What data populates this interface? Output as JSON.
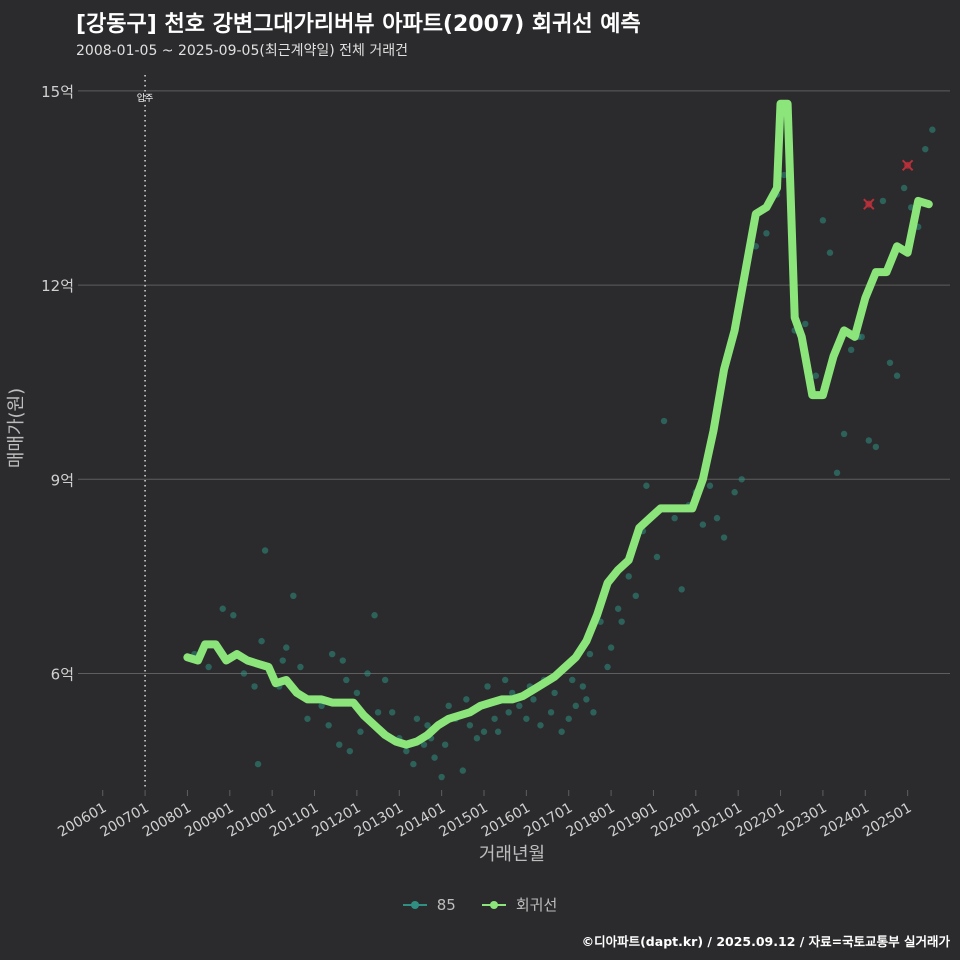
{
  "title": "[강동구] 천호 강변그대가리버뷰 아파트(2007) 회귀선 예측",
  "subtitle": "2008-01-05 ~ 2025-09-05(최근계약일) 전체 거래건",
  "caption": "©디아파트(dapt.kr) / 2025.09.12 / 자료=국토교통부 실거래가",
  "colors": {
    "background": "#2b2b2d",
    "grid": "#5e5e5e",
    "scatter": "#2f8f82",
    "regression": "#8be57a",
    "outlier": "#b8303a",
    "text": "#d0d0d0"
  },
  "chart_data": {
    "type": "line",
    "xlabel": "거래년월",
    "ylabel": "매매가(원)",
    "x_ticks": [
      "200601",
      "200701",
      "200801",
      "200901",
      "201001",
      "201101",
      "201201",
      "201301",
      "201401",
      "201501",
      "201601",
      "201701",
      "201801",
      "201901",
      "202001",
      "202101",
      "202201",
      "202301",
      "202401",
      "202501"
    ],
    "y_ticks": [
      {
        "value": 6,
        "label": "6억"
      },
      {
        "value": 9,
        "label": "9억"
      },
      {
        "value": 12,
        "label": "12억"
      },
      {
        "value": 15,
        "label": "15억"
      }
    ],
    "xlim": [
      "2005-06",
      "2026-01"
    ],
    "ylim": [
      4.2,
      15.4
    ],
    "annotation": {
      "x": "2007-01",
      "label": "입주"
    },
    "legend": [
      {
        "name": "85",
        "style": "point"
      },
      {
        "name": "회귀선",
        "style": "line"
      }
    ],
    "regression": {
      "name": "회귀선",
      "x": [
        "2008-01",
        "2008-04",
        "2008-06",
        "2008-09",
        "2008-12",
        "2009-03",
        "2009-06",
        "2009-09",
        "2009-12",
        "2010-02",
        "2010-05",
        "2010-08",
        "2010-11",
        "2011-03",
        "2011-06",
        "2011-09",
        "2011-12",
        "2012-03",
        "2012-06",
        "2012-09",
        "2012-12",
        "2013-03",
        "2013-06",
        "2013-09",
        "2013-12",
        "2014-03",
        "2014-06",
        "2014-09",
        "2014-12",
        "2015-03",
        "2015-06",
        "2015-09",
        "2015-12",
        "2016-03",
        "2016-06",
        "2016-09",
        "2016-12",
        "2017-03",
        "2017-06",
        "2017-09",
        "2017-12",
        "2018-03",
        "2018-06",
        "2018-09",
        "2018-12",
        "2019-03",
        "2019-06",
        "2019-09",
        "2019-12",
        "2020-03",
        "2020-06",
        "2020-09",
        "2020-12",
        "2021-03",
        "2021-06",
        "2021-09",
        "2021-12",
        "2022-01",
        "2022-03",
        "2022-05",
        "2022-07",
        "2022-10",
        "2023-01",
        "2023-04",
        "2023-07",
        "2023-10",
        "2024-01",
        "2024-04",
        "2024-07",
        "2024-10",
        "2025-01",
        "2025-04",
        "2025-07"
      ],
      "y": [
        6.25,
        6.2,
        6.45,
        6.45,
        6.2,
        6.3,
        6.2,
        6.15,
        6.1,
        5.85,
        5.9,
        5.7,
        5.6,
        5.6,
        5.55,
        5.55,
        5.55,
        5.35,
        5.2,
        5.05,
        4.95,
        4.9,
        4.95,
        5.05,
        5.2,
        5.3,
        5.35,
        5.4,
        5.5,
        5.55,
        5.6,
        5.6,
        5.65,
        5.75,
        5.85,
        5.95,
        6.1,
        6.25,
        6.5,
        6.9,
        7.4,
        7.6,
        7.75,
        8.25,
        8.4,
        8.55,
        8.55,
        8.55,
        8.55,
        9.0,
        9.75,
        10.7,
        11.3,
        12.2,
        13.1,
        13.2,
        13.5,
        14.8,
        14.8,
        11.5,
        11.2,
        10.3,
        10.3,
        10.9,
        11.3,
        11.2,
        11.8,
        12.2,
        12.2,
        12.6,
        12.5,
        13.3,
        13.25
      ]
    },
    "series": [
      {
        "name": "85",
        "x": [
          "2008-03",
          "2008-07",
          "2008-11",
          "2009-02",
          "2009-05",
          "2009-08",
          "2009-09",
          "2009-10",
          "2009-11",
          "2010-01",
          "2010-03",
          "2010-04",
          "2010-05",
          "2010-07",
          "2010-09",
          "2010-11",
          "2011-01",
          "2011-03",
          "2011-05",
          "2011-06",
          "2011-08",
          "2011-09",
          "2011-10",
          "2011-11",
          "2012-01",
          "2012-02",
          "2012-04",
          "2012-06",
          "2012-07",
          "2012-09",
          "2012-11",
          "2013-01",
          "2013-03",
          "2013-05",
          "2013-06",
          "2013-08",
          "2013-09",
          "2013-10",
          "2013-11",
          "2014-01",
          "2014-02",
          "2014-03",
          "2014-05",
          "2014-07",
          "2014-08",
          "2014-09",
          "2014-11",
          "2015-01",
          "2015-02",
          "2015-04",
          "2015-05",
          "2015-07",
          "2015-08",
          "2015-09",
          "2015-11",
          "2016-01",
          "2016-02",
          "2016-03",
          "2016-05",
          "2016-06",
          "2016-08",
          "2016-09",
          "2016-11",
          "2017-01",
          "2017-02",
          "2017-03",
          "2017-05",
          "2017-06",
          "2017-07",
          "2017-08",
          "2017-10",
          "2017-12",
          "2018-01",
          "2018-03",
          "2018-04",
          "2018-06",
          "2018-08",
          "2018-10",
          "2018-11",
          "2019-02",
          "2019-04",
          "2019-07",
          "2019-09",
          "2019-11",
          "2020-01",
          "2020-03",
          "2020-05",
          "2020-07",
          "2020-09",
          "2020-12",
          "2021-02",
          "2021-06",
          "2021-09",
          "2021-12",
          "2022-02",
          "2022-05",
          "2022-08",
          "2022-11",
          "2023-01",
          "2023-03",
          "2023-05",
          "2023-07",
          "2023-09",
          "2023-11",
          "2023-12",
          "2024-02",
          "2024-04",
          "2024-06",
          "2024-08",
          "2024-10",
          "2024-12",
          "2025-02",
          "2025-04",
          "2025-06",
          "2025-08"
        ],
        "y": [
          6.3,
          6.1,
          7.0,
          6.9,
          6.0,
          5.8,
          4.6,
          6.5,
          7.9,
          6.0,
          5.8,
          6.2,
          6.4,
          7.2,
          6.1,
          5.3,
          5.6,
          5.5,
          5.2,
          6.3,
          4.9,
          6.2,
          5.9,
          4.8,
          5.7,
          5.1,
          6.0,
          6.9,
          5.4,
          5.9,
          5.4,
          5.0,
          4.8,
          4.6,
          5.3,
          4.9,
          5.2,
          5.0,
          4.7,
          4.4,
          4.9,
          5.5,
          5.3,
          4.5,
          5.6,
          5.2,
          5.0,
          5.1,
          5.8,
          5.3,
          5.1,
          5.9,
          5.4,
          5.7,
          5.5,
          5.3,
          5.8,
          5.6,
          5.2,
          5.9,
          5.4,
          5.7,
          5.1,
          5.3,
          5.9,
          5.5,
          5.8,
          5.6,
          6.3,
          5.4,
          6.8,
          6.1,
          6.4,
          7.0,
          6.8,
          7.5,
          7.2,
          8.2,
          8.9,
          7.8,
          9.9,
          8.4,
          7.3,
          8.6,
          8.8,
          8.3,
          8.9,
          8.4,
          8.1,
          8.8,
          9.0,
          12.6,
          12.8,
          13.4,
          13.7,
          11.3,
          11.4,
          10.6,
          13.0,
          12.5,
          9.1,
          9.7,
          11.0,
          11.2,
          11.2,
          9.6,
          9.5,
          13.3,
          10.8,
          10.6,
          13.5,
          13.2,
          12.9,
          14.1,
          14.4
        ]
      }
    ],
    "outliers": [
      {
        "x": "2024-02",
        "y": 13.25
      },
      {
        "x": "2025-01",
        "y": 13.85
      }
    ]
  }
}
